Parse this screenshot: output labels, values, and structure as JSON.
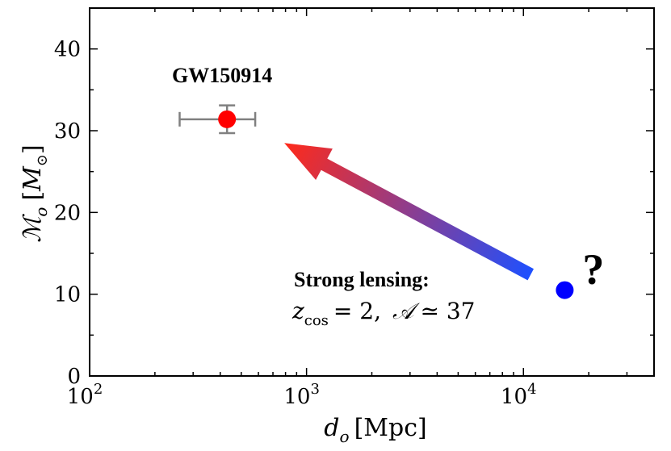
{
  "chart_data": {
    "type": "scatter",
    "xscale": "log",
    "xlim": [
      100,
      40000
    ],
    "ylim": [
      0,
      45
    ],
    "xticks": [
      {
        "value": 100,
        "base": "10",
        "exp": "2"
      },
      {
        "value": 1000,
        "base": "10",
        "exp": "3"
      },
      {
        "value": 10000,
        "base": "10",
        "exp": "4"
      }
    ],
    "yticks": [
      {
        "value": 0,
        "label": "0"
      },
      {
        "value": 10,
        "label": "10"
      },
      {
        "value": 20,
        "label": "20"
      },
      {
        "value": 30,
        "label": "30"
      },
      {
        "value": 40,
        "label": "40"
      }
    ],
    "xlabel": {
      "var": "d",
      "sub": "o",
      "unit": "[Mpc]"
    },
    "ylabel": {
      "var": "ℳ",
      "sub": "o",
      "unit_open": "[",
      "unit_var": "M",
      "unit_sub": "⊙",
      "unit_close": "]"
    },
    "points": [
      {
        "name": "GW150914",
        "label": "GW150914",
        "x": 430,
        "y": 31.4,
        "xerr": [
          260,
          580
        ],
        "yerr": [
          29.7,
          33.1
        ],
        "color": "#ff0000"
      },
      {
        "name": "unknown",
        "label": "?",
        "x": 15500,
        "y": 10.5,
        "color": "#0000ff"
      }
    ],
    "arrow": {
      "from": [
        10800,
        12.4
      ],
      "to": [
        790,
        28.5
      ],
      "color_start": "#1e50ff",
      "color_end": "#ff2a1a"
    },
    "annotation": {
      "title": "Strong lensing:",
      "z_var": "z",
      "z_sub": "cos",
      "z_value": "= 2,",
      "a_symbol": "𝒜",
      "a_value": "≃ 37"
    },
    "errorbar_color": "#808080"
  }
}
